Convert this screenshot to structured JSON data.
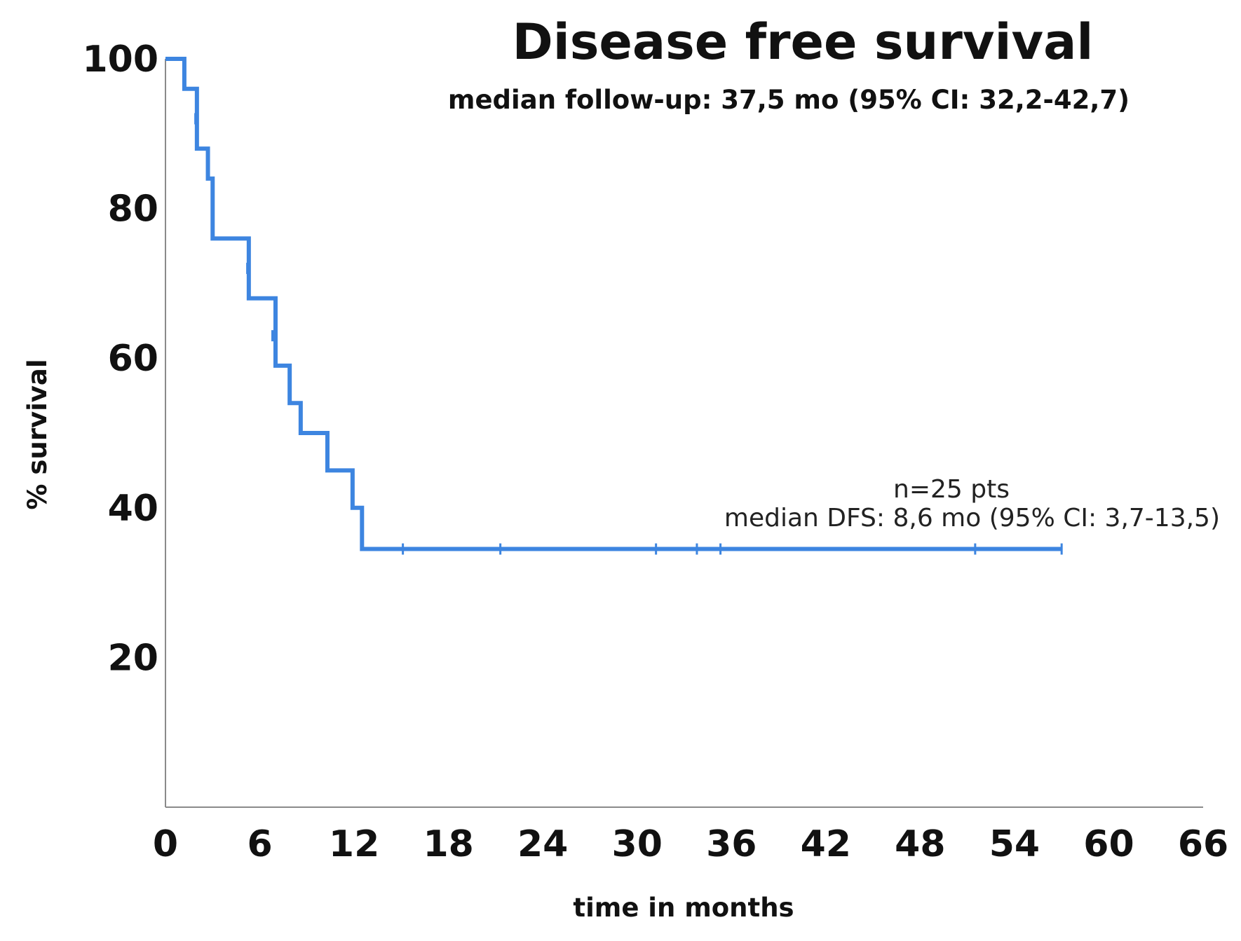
{
  "chart_data": {
    "type": "line",
    "title": "Disease free survival",
    "subtitle": "median follow-up: 37,5 mo (95% CI: 32,2-42,7)",
    "xlabel": "time in months",
    "ylabel": "% survival",
    "xlim": [
      0,
      66
    ],
    "ylim": [
      0,
      100
    ],
    "x_ticks": [
      "0",
      "6",
      "12",
      "18",
      "24",
      "30",
      "36",
      "42",
      "48",
      "54",
      "60",
      "66"
    ],
    "y_ticks": [
      "100",
      "80",
      "60",
      "40",
      "20"
    ],
    "grid": false,
    "series": [
      {
        "color": "#3d85e0",
        "steps": [
          {
            "x": 0,
            "y": 100
          },
          {
            "x": 1.2,
            "y": 96
          },
          {
            "x": 2.0,
            "y": 88
          },
          {
            "x": 2.7,
            "y": 84
          },
          {
            "x": 3.0,
            "y": 76
          },
          {
            "x": 5.3,
            "y": 68
          },
          {
            "x": 7.0,
            "y": 59
          },
          {
            "x": 7.9,
            "y": 54
          },
          {
            "x": 8.6,
            "y": 50
          },
          {
            "x": 10.3,
            "y": 45
          },
          {
            "x": 11.9,
            "y": 40
          },
          {
            "x": 12.5,
            "y": 34.5
          }
        ],
        "end_x": 57.0,
        "censored": [
          {
            "x": 1.9,
            "y": 92
          },
          {
            "x": 5.2,
            "y": 72
          },
          {
            "x": 6.8,
            "y": 63
          },
          {
            "x": 15.1,
            "y": 34.5
          },
          {
            "x": 21.3,
            "y": 34.5
          },
          {
            "x": 31.2,
            "y": 34.5
          },
          {
            "x": 33.8,
            "y": 34.5
          },
          {
            "x": 35.3,
            "y": 34.5
          },
          {
            "x": 51.5,
            "y": 34.5
          },
          {
            "x": 57.0,
            "y": 34.5
          }
        ]
      }
    ],
    "annotations": [
      "n=25 pts",
      "median DFS: 8,6 mo (95% CI: 3,7-13,5)"
    ]
  }
}
